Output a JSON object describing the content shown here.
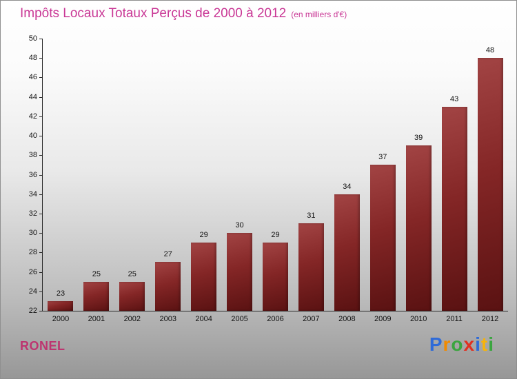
{
  "header": {
    "title": "Impôts Locaux Totaux Perçus de 2000 à 2012",
    "subtitle": "(en milliers d'€)"
  },
  "footer": {
    "name": "RONEL"
  },
  "logo": {
    "text": "Proxiti",
    "letters": [
      {
        "ch": "P",
        "color": "#2f6bd8"
      },
      {
        "ch": "r",
        "color": "#f18a00"
      },
      {
        "ch": "o",
        "color": "#3aa53f"
      },
      {
        "ch": "x",
        "color": "#e03020"
      },
      {
        "ch": "i",
        "color": "#2f6bd8"
      },
      {
        "ch": "t",
        "color": "#f6b40a"
      },
      {
        "ch": "i",
        "color": "#3aa53f"
      }
    ]
  },
  "colors": {
    "title_text": "#c93795",
    "brand_text": "#bd3570",
    "bar_top": "#a24444",
    "bar_bottom": "#5a1212",
    "axis": "#2a2a2a"
  },
  "chart_data": {
    "type": "bar",
    "title": "Impôts Locaux Totaux Perçus de 2000 à 2012",
    "subtitle": "(en milliers d'€)",
    "categories": [
      "2000",
      "2001",
      "2002",
      "2003",
      "2004",
      "2005",
      "2006",
      "2007",
      "2008",
      "2009",
      "2010",
      "2011",
      "2012"
    ],
    "values": [
      23,
      25,
      25,
      27,
      29,
      30,
      29,
      31,
      34,
      37,
      39,
      43,
      48
    ],
    "xlabel": "",
    "ylabel": "",
    "ylim": [
      22,
      50
    ],
    "ytick_step": 2,
    "grid": false,
    "legend": false,
    "value_labels": true
  }
}
